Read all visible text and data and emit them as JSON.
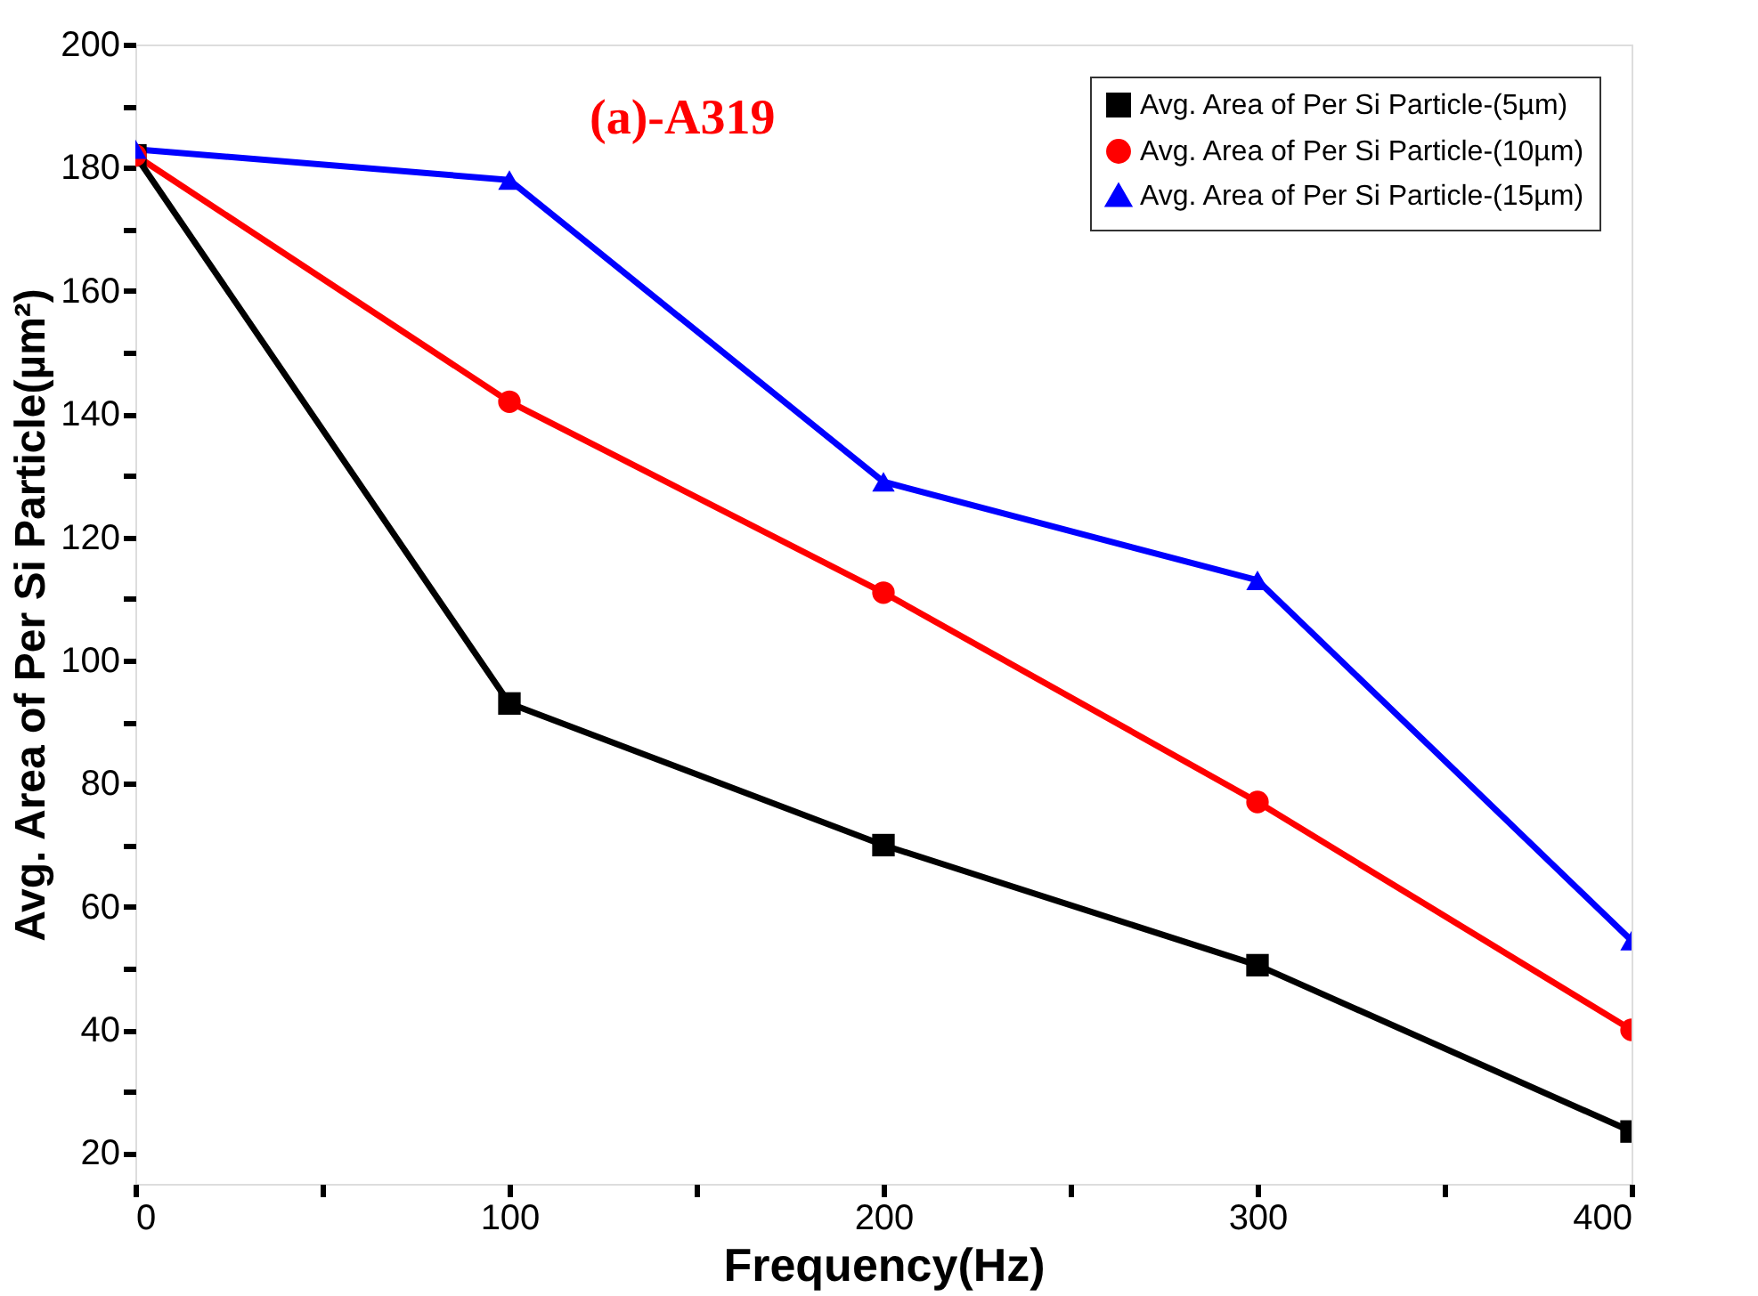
{
  "chart_data": {
    "type": "line",
    "xlabel": "Frequency(Hz)",
    "ylabel": "Avg. Area of Per Si Particle(µm²)",
    "annotations": [
      "(a)-A319"
    ],
    "x": [
      0,
      100,
      200,
      300,
      400
    ],
    "series": [
      {
        "name": "Avg. Area of Per Si Particle-(5µm)",
        "color": "#000000",
        "marker": "square",
        "values": [
          182,
          93,
          70,
          50.5,
          23.5
        ]
      },
      {
        "name": "Avg. Area of Per Si Particle-(10µm)",
        "color": "#ff0000",
        "marker": "circle",
        "values": [
          182,
          142,
          111,
          77,
          40
        ]
      },
      {
        "name": "Avg. Area of Per Si Particle-(15µm)",
        "color": "#0000ff",
        "marker": "triangle",
        "values": [
          183,
          178,
          129,
          113,
          54.5
        ]
      }
    ],
    "xlim": [
      0,
      400
    ],
    "ylim": [
      15,
      200
    ],
    "xticks": [
      0,
      {
        "value": 50,
        "label": null
      },
      100,
      {
        "value": 150,
        "label": null
      },
      200,
      {
        "value": 250,
        "label": null
      },
      300,
      {
        "value": 350,
        "label": null
      },
      400
    ],
    "yticks": [
      20,
      {
        "value": 30,
        "label": null
      },
      40,
      {
        "value": 50,
        "label": null
      },
      60,
      {
        "value": 70,
        "label": null
      },
      80,
      {
        "value": 90,
        "label": null
      },
      100,
      {
        "value": 110,
        "label": null
      },
      120,
      {
        "value": 130,
        "label": null
      },
      140,
      {
        "value": 150,
        "label": null
      },
      160,
      {
        "value": 170,
        "label": null
      },
      180,
      {
        "value": 190,
        "label": null
      },
      200
    ],
    "grid": false,
    "legend": "top right",
    "line_style": "solid"
  }
}
